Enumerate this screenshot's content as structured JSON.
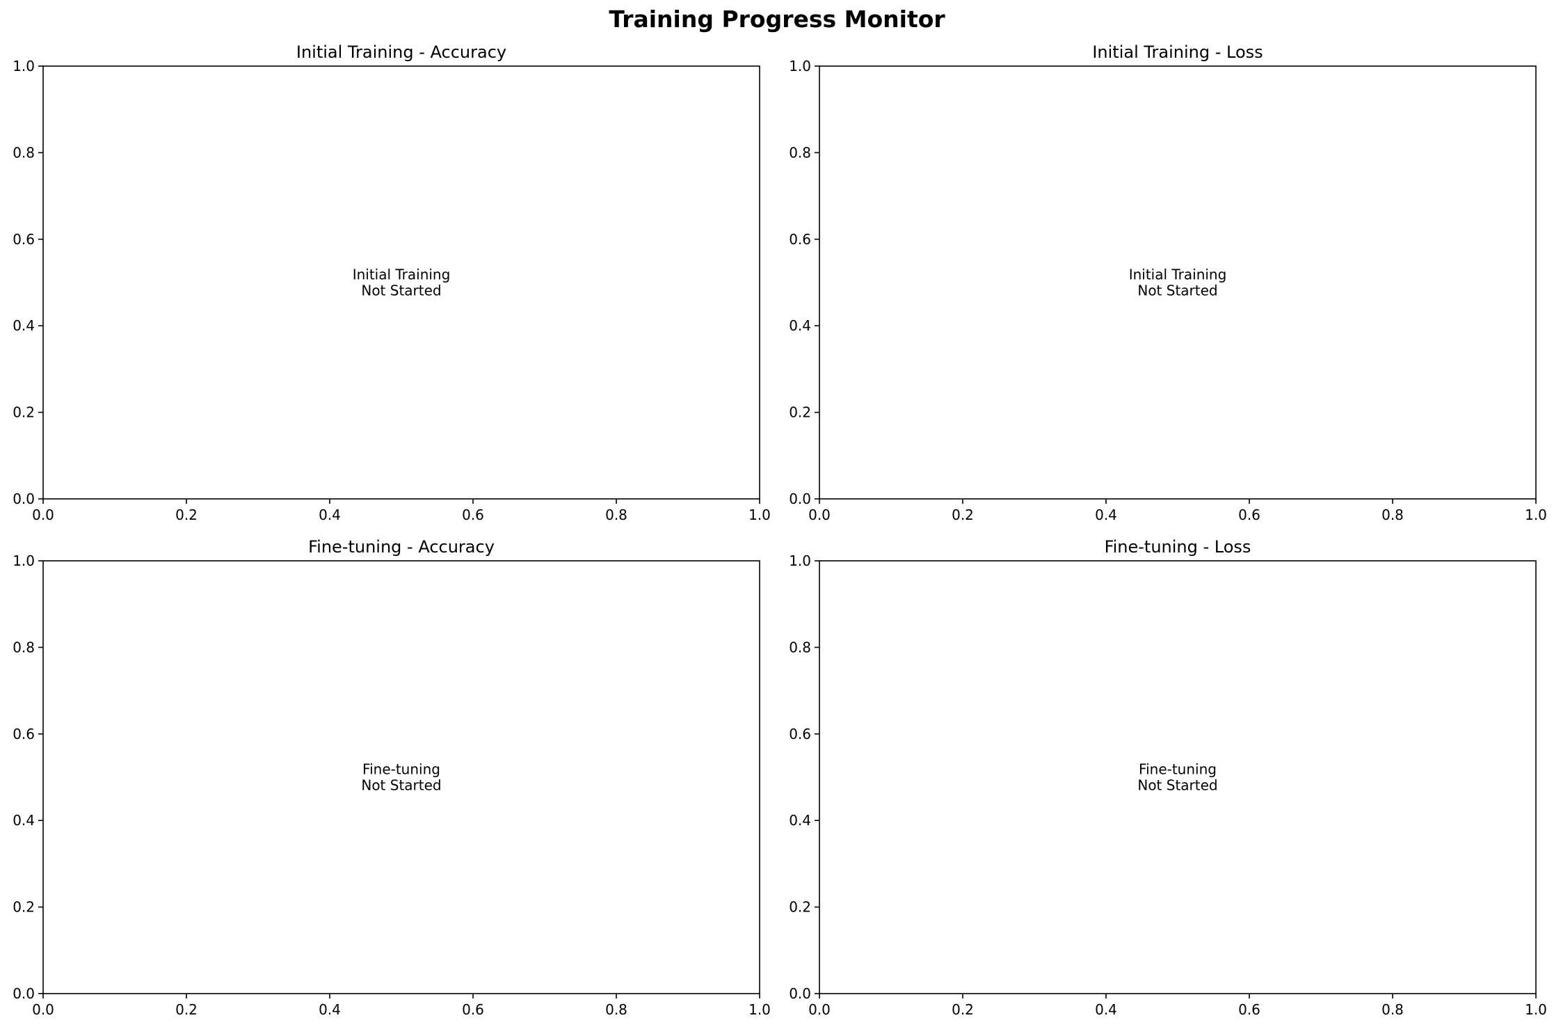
{
  "figure_title": "Training Progress Monitor",
  "chart_data": [
    {
      "type": "line",
      "title": "Initial Training - Accuracy",
      "xlabel": "",
      "ylabel": "",
      "xlim": [
        0,
        1
      ],
      "ylim": [
        0,
        1
      ],
      "x_ticks": [
        "0.0",
        "0.2",
        "0.4",
        "0.6",
        "0.8",
        "1.0"
      ],
      "y_ticks": [
        "0.0",
        "0.2",
        "0.4",
        "0.6",
        "0.8",
        "1.0"
      ],
      "series": [],
      "grid": false,
      "annotation": {
        "lines": [
          "Initial Training",
          "Not Started"
        ],
        "x": 0.5,
        "y": 0.5
      }
    },
    {
      "type": "line",
      "title": "Initial Training - Loss",
      "xlabel": "",
      "ylabel": "",
      "xlim": [
        0,
        1
      ],
      "ylim": [
        0,
        1
      ],
      "x_ticks": [
        "0.0",
        "0.2",
        "0.4",
        "0.6",
        "0.8",
        "1.0"
      ],
      "y_ticks": [
        "0.0",
        "0.2",
        "0.4",
        "0.6",
        "0.8",
        "1.0"
      ],
      "series": [],
      "grid": false,
      "annotation": {
        "lines": [
          "Initial Training",
          "Not Started"
        ],
        "x": 0.5,
        "y": 0.5
      }
    },
    {
      "type": "line",
      "title": "Fine-tuning - Accuracy",
      "xlabel": "",
      "ylabel": "",
      "xlim": [
        0,
        1
      ],
      "ylim": [
        0,
        1
      ],
      "x_ticks": [
        "0.0",
        "0.2",
        "0.4",
        "0.6",
        "0.8",
        "1.0"
      ],
      "y_ticks": [
        "0.0",
        "0.2",
        "0.4",
        "0.6",
        "0.8",
        "1.0"
      ],
      "series": [],
      "grid": false,
      "annotation": {
        "lines": [
          "Fine-tuning",
          "Not Started"
        ],
        "x": 0.5,
        "y": 0.5
      }
    },
    {
      "type": "line",
      "title": "Fine-tuning - Loss",
      "xlabel": "",
      "ylabel": "",
      "xlim": [
        0,
        1
      ],
      "ylim": [
        0,
        1
      ],
      "x_ticks": [
        "0.0",
        "0.2",
        "0.4",
        "0.6",
        "0.8",
        "1.0"
      ],
      "y_ticks": [
        "0.0",
        "0.2",
        "0.4",
        "0.6",
        "0.8",
        "1.0"
      ],
      "series": [],
      "grid": false,
      "annotation": {
        "lines": [
          "Fine-tuning",
          "Not Started"
        ],
        "x": 0.5,
        "y": 0.5
      }
    }
  ]
}
